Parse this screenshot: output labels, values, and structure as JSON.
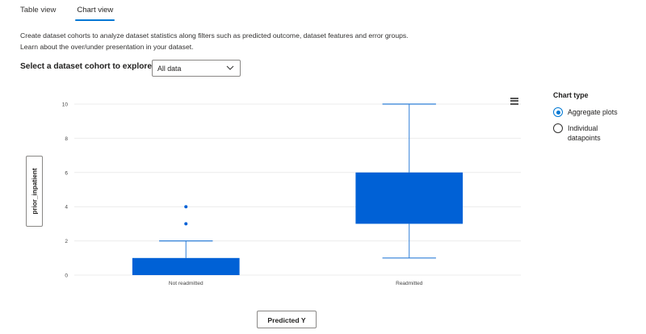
{
  "tabs": [
    {
      "label": "Table view",
      "active": false
    },
    {
      "label": "Chart view",
      "active": true
    }
  ],
  "description": "Create dataset cohorts to analyze dataset statistics along filters such as predicted outcome, dataset features and error groups. Learn about the over/under presentation in your dataset.",
  "cohort": {
    "label": "Select a dataset cohort to explore",
    "selected": "All data"
  },
  "axes": {
    "y_button": "prior_inpatient",
    "x_button": "Predicted Y"
  },
  "chart_type": {
    "title": "Chart type",
    "options": [
      {
        "label": "Aggregate plots",
        "checked": true
      },
      {
        "label": "Individual datapoints",
        "checked": false
      }
    ]
  },
  "icons": {
    "menu": "hamburger-menu-icon",
    "dropdown": "chevron-down-icon"
  },
  "colors": {
    "accent": "#0078d4",
    "box": "#0061d6",
    "whisker": "#2f7fd8"
  },
  "chart_data": {
    "type": "box",
    "categories": [
      "Not readmitted",
      "Readmitted"
    ],
    "ylim": [
      0,
      10
    ],
    "yticks": [
      0,
      2,
      4,
      6,
      8,
      10
    ],
    "grid": true,
    "series": [
      {
        "min": 0,
        "q1": 0,
        "median": 0,
        "q3": 1,
        "max": 2,
        "outliers": [
          3,
          4
        ]
      },
      {
        "min": 1,
        "q1": 3,
        "median": 3,
        "q3": 6,
        "max": 10,
        "outliers": []
      }
    ]
  }
}
